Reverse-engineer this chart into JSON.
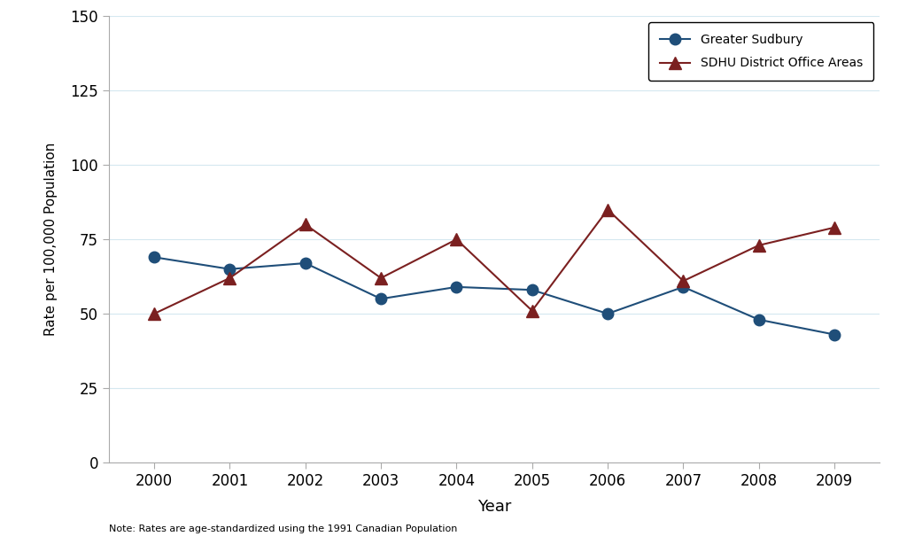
{
  "years": [
    2000,
    2001,
    2002,
    2003,
    2004,
    2005,
    2006,
    2007,
    2008,
    2009
  ],
  "greater_sudbury": [
    69,
    65,
    67,
    55,
    59,
    58,
    50,
    59,
    48,
    43
  ],
  "sdhu_district": [
    50,
    62,
    80,
    62,
    75,
    51,
    85,
    61,
    73,
    79
  ],
  "sudbury_color": "#1f4e79",
  "sdhu_color": "#7b2020",
  "sudbury_label": "Greater Sudbury",
  "sdhu_label": "SDHU District Office Areas",
  "xlabel": "Year",
  "ylabel": "Rate per 100,000 Population",
  "ylim": [
    0,
    150
  ],
  "yticks": [
    0,
    25,
    50,
    75,
    100,
    125,
    150
  ],
  "note": "Note: Rates are age-standardized using the 1991 Canadian Population",
  "background_color": "#ffffff",
  "plot_bg_color": "#ffffff",
  "grid_color": "#d5e8f0"
}
